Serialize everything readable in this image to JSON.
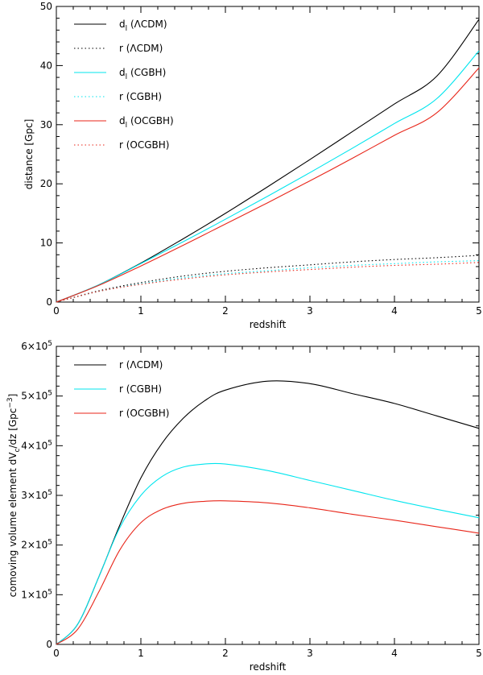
{
  "chart_data": [
    {
      "type": "line",
      "xlabel": "redshift",
      "ylabel": "distance [Gpc]",
      "xlim": [
        0,
        5
      ],
      "ylim": [
        0,
        50
      ],
      "xticks": [
        "0",
        "1",
        "2",
        "3",
        "4",
        "5"
      ],
      "yticks": [
        "0",
        "10",
        "20",
        "30",
        "40",
        "50"
      ],
      "legend_position": "top-left",
      "grid": false,
      "x": [
        0,
        0.5,
        1,
        1.5,
        2,
        2.5,
        3,
        3.5,
        4,
        4.5,
        5
      ],
      "series": [
        {
          "name": "d_l (ΛCDM)",
          "label_main": "d",
          "label_sub": "l",
          "label_rest": " (ΛCDM)",
          "color": "#000000",
          "style": "solid",
          "values": [
            0,
            2.9,
            6.6,
            10.7,
            15.0,
            19.5,
            24.1,
            28.8,
            33.5,
            38.2,
            47.8
          ]
        },
        {
          "name": "r (ΛCDM)",
          "label_main": "r (ΛCDM)",
          "label_sub": "",
          "label_rest": "",
          "color": "#000000",
          "style": "dotted",
          "values": [
            0,
            1.9,
            3.3,
            4.4,
            5.2,
            5.8,
            6.3,
            6.8,
            7.2,
            7.5,
            7.9
          ]
        },
        {
          "name": "d_l (CGBH)",
          "label_main": "d",
          "label_sub": "l",
          "label_rest": " (CGBH)",
          "color": "#00e5ee",
          "style": "solid",
          "values": [
            0,
            2.9,
            6.5,
            10.2,
            14.0,
            17.9,
            21.9,
            26.0,
            30.2,
            34.4,
            42.5
          ]
        },
        {
          "name": "r (CGBH)",
          "label_main": "r (CGBH)",
          "label_sub": "",
          "label_rest": "",
          "color": "#00e5ee",
          "style": "dotted",
          "values": [
            0,
            1.8,
            3.1,
            4.1,
            4.8,
            5.3,
            5.8,
            6.2,
            6.5,
            6.8,
            7.0
          ]
        },
        {
          "name": "d_l (OCGBH)",
          "label_main": "d",
          "label_sub": "l",
          "label_rest": " (OCGBH)",
          "color": "#e8261a",
          "style": "solid",
          "values": [
            0,
            2.8,
            6.1,
            9.6,
            13.2,
            16.8,
            20.5,
            24.3,
            28.2,
            32.0,
            39.6
          ]
        },
        {
          "name": "r (OCGBH)",
          "label_main": "r (OCGBH)",
          "label_sub": "",
          "label_rest": "",
          "color": "#e8261a",
          "style": "dotted",
          "values": [
            0,
            1.8,
            3.0,
            3.9,
            4.6,
            5.1,
            5.5,
            5.9,
            6.2,
            6.4,
            6.7
          ]
        }
      ]
    },
    {
      "type": "line",
      "xlabel": "redshift",
      "ylabel": "comoving volume element dV_c/dz [Gpc^-3]",
      "ylabel_parts": {
        "main": "comoving volume element dV",
        "sub": "c",
        "mid": "/dz [Gpc",
        "sup": "−3",
        "end": "]"
      },
      "xlim": [
        0,
        5
      ],
      "ylim": [
        0,
        600000
      ],
      "xticks": [
        "0",
        "1",
        "2",
        "3",
        "4",
        "5"
      ],
      "yticks": [
        {
          "base": "0",
          "sup": ""
        },
        {
          "base": "1×10",
          "sup": "5"
        },
        {
          "base": "2×10",
          "sup": "5"
        },
        {
          "base": "3×10",
          "sup": "5"
        },
        {
          "base": "4×10",
          "sup": "5"
        },
        {
          "base": "5×10",
          "sup": "5"
        },
        {
          "base": "6×10",
          "sup": "5"
        }
      ],
      "legend_position": "top-left",
      "grid": false,
      "x": [
        0,
        0.25,
        0.5,
        0.75,
        1,
        1.25,
        1.5,
        1.75,
        2,
        2.5,
        3,
        3.5,
        4,
        4.5,
        5
      ],
      "series": [
        {
          "name": "r (ΛCDM)",
          "color": "#000000",
          "style": "solid",
          "values": [
            0,
            40000,
            135000,
            240000,
            335000,
            405000,
            455000,
            490000,
            512000,
            530000,
            525000,
            505000,
            485000,
            460000,
            435000
          ]
        },
        {
          "name": "r (CGBH)",
          "color": "#00e5ee",
          "style": "solid",
          "values": [
            0,
            40000,
            135000,
            235000,
            300000,
            338000,
            357000,
            363000,
            363000,
            350000,
            330000,
            310000,
            290000,
            272000,
            255000
          ]
        },
        {
          "name": "r (OCGBH)",
          "color": "#e8261a",
          "style": "solid",
          "values": [
            0,
            30000,
            105000,
            190000,
            245000,
            272000,
            284000,
            288000,
            289000,
            285000,
            275000,
            262000,
            250000,
            237000,
            224000
          ]
        }
      ]
    }
  ]
}
